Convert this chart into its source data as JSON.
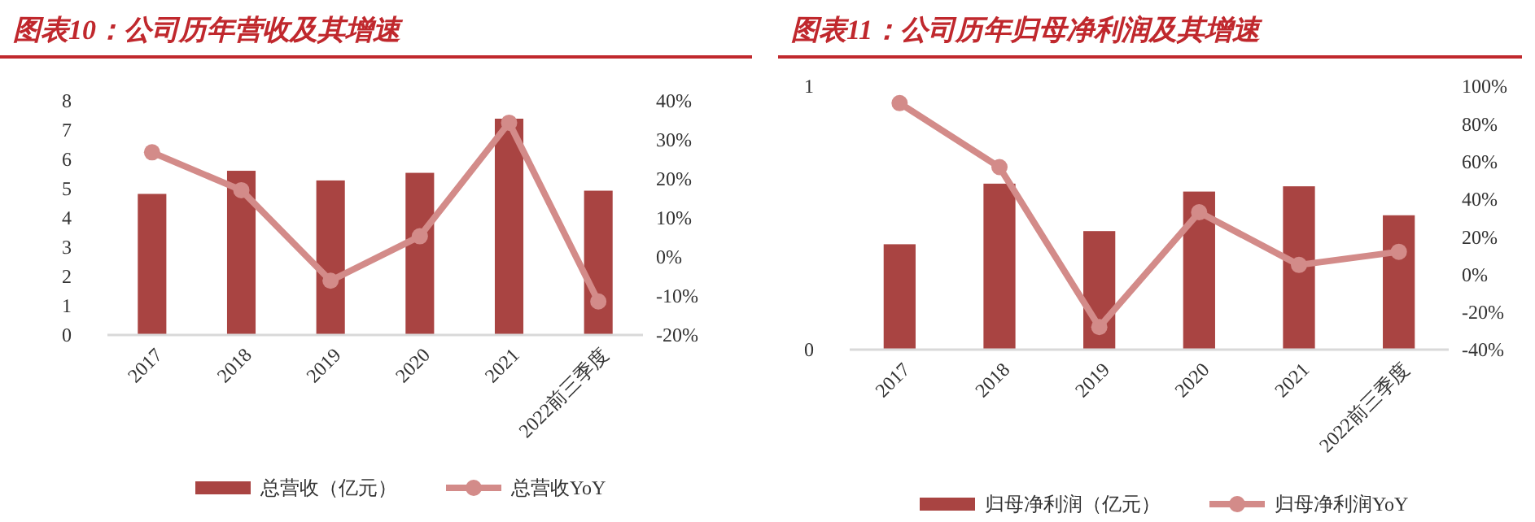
{
  "chart_data": [
    {
      "type": "bar",
      "title": "图表10：公司历年营收及其增速",
      "categories": [
        "2017",
        "2018",
        "2019",
        "2020",
        "2021",
        "2022前三季度"
      ],
      "series": [
        {
          "name": "总营收（亿元）",
          "color": "#a94442",
          "values": [
            4.82,
            5.61,
            5.28,
            5.54,
            7.39,
            4.93
          ]
        },
        {
          "name": "总营收YoY",
          "type": "line",
          "axis": "y2",
          "marker": "circle",
          "color": "#d38b89",
          "values": [
            26.8,
            17.1,
            -6.1,
            5.3,
            34.4,
            -11.4
          ]
        }
      ],
      "ylim": [
        0,
        8
      ],
      "yticks": [
        0,
        1,
        2,
        3,
        4,
        5,
        6,
        7,
        8
      ],
      "y2lim": [
        -20,
        40
      ],
      "y2ticks": [
        {
          "value": -20,
          "label": "-20%"
        },
        {
          "value": -10,
          "label": "-10%"
        },
        {
          "value": 0,
          "label": "0%"
        },
        {
          "value": 10,
          "label": "10%"
        },
        {
          "value": 20,
          "label": "20%"
        },
        {
          "value": 30,
          "label": "30%"
        },
        {
          "value": 40,
          "label": "40%"
        }
      ],
      "grid": false,
      "legend": "bottom"
    },
    {
      "type": "bar",
      "title": "图表11：公司历年归母净利润及其增速",
      "categories": [
        "2017",
        "2018",
        "2019",
        "2020",
        "2021",
        "2022前三季度"
      ],
      "series": [
        {
          "name": "归母净利润（亿元）",
          "color": "#a94442",
          "values": [
            0.4,
            0.63,
            0.45,
            0.6,
            0.62,
            0.51
          ]
        },
        {
          "name": "归母净利润YoY",
          "type": "line",
          "axis": "y2",
          "marker": "circle",
          "color": "#d38b89",
          "values": [
            91,
            57,
            -28,
            33,
            5,
            12
          ]
        }
      ],
      "ylim": [
        0,
        1
      ],
      "yticks": [
        0,
        1
      ],
      "y2lim": [
        -40,
        100
      ],
      "y2ticks": [
        {
          "value": -40,
          "label": "-40%"
        },
        {
          "value": -20,
          "label": "-20%"
        },
        {
          "value": 0,
          "label": "0%"
        },
        {
          "value": 20,
          "label": "20%"
        },
        {
          "value": 40,
          "label": "40%"
        },
        {
          "value": 60,
          "label": "60%"
        },
        {
          "value": 80,
          "label": "80%"
        },
        {
          "value": 100,
          "label": "100%"
        }
      ],
      "grid": false,
      "legend": "bottom"
    }
  ]
}
